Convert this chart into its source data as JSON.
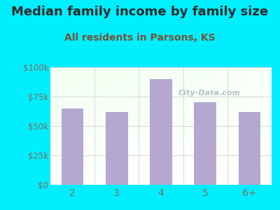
{
  "title": "Median family income by family size",
  "subtitle": "All residents in Parsons, KS",
  "categories": [
    "2",
    "3",
    "4",
    "5",
    "6+"
  ],
  "values": [
    65000,
    62000,
    90000,
    70000,
    62000
  ],
  "bar_color": "#b5a8d0",
  "background_outer": "#00eeff",
  "title_color": "#2a2a2a",
  "subtitle_color": "#7a5030",
  "tick_color": "#7a7060",
  "ytick_color": "#7a7060",
  "ylim": [
    0,
    100000
  ],
  "yticks": [
    0,
    25000,
    50000,
    75000,
    100000
  ],
  "ytick_labels": [
    "$0",
    "$25k",
    "$50k",
    "$75k",
    "$100k"
  ],
  "title_fontsize": 13,
  "subtitle_fontsize": 10,
  "watermark": "City-Data.com"
}
